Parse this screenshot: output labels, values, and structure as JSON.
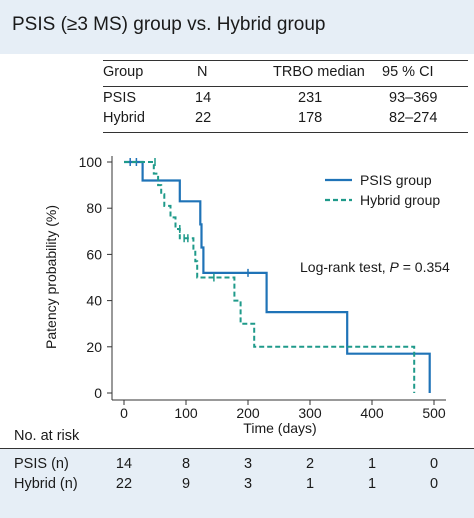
{
  "header": {
    "title": "PSIS (≥3 MS) group vs. Hybrid group"
  },
  "table": {
    "columns": [
      "Group",
      "N",
      "TRBO median",
      "95 % CI"
    ],
    "rows": [
      [
        "PSIS",
        "14",
        "231",
        "93–369"
      ],
      [
        "Hybrid",
        "22",
        "178",
        "82–274"
      ]
    ]
  },
  "chart_data": {
    "type": "line",
    "subtype": "kaplan-meier step",
    "xlabel": "Time (days)",
    "ylabel": "Patency probability (%)",
    "xlim": [
      0,
      500
    ],
    "ylim": [
      0,
      100
    ],
    "xticks": [
      0,
      100,
      200,
      300,
      400,
      500
    ],
    "yticks": [
      0,
      20,
      40,
      60,
      80,
      100
    ],
    "grid": false,
    "legend_position": "top-right",
    "annotation": {
      "prefix": "Log-rank test, ",
      "p": "P",
      "suffix": " = 0.354"
    },
    "series": [
      {
        "name": "PSIS group",
        "color": "#1f73b7",
        "style": "solid",
        "steps": [
          [
            0,
            100
          ],
          [
            30,
            100
          ],
          [
            30,
            92
          ],
          [
            90,
            92
          ],
          [
            90,
            83
          ],
          [
            123,
            83
          ],
          [
            123,
            73
          ],
          [
            125,
            73
          ],
          [
            125,
            63
          ],
          [
            128,
            63
          ],
          [
            128,
            52
          ],
          [
            230,
            52
          ],
          [
            230,
            35
          ],
          [
            360,
            35
          ],
          [
            360,
            17
          ],
          [
            493,
            17
          ],
          [
            493,
            0
          ]
        ],
        "censored": [
          [
            10,
            100
          ],
          [
            20,
            100
          ],
          [
            200,
            52
          ]
        ]
      },
      {
        "name": "Hybrid group",
        "color": "#1f9a8a",
        "style": "dashed",
        "steps": [
          [
            0,
            100
          ],
          [
            48,
            100
          ],
          [
            48,
            95
          ],
          [
            55,
            95
          ],
          [
            55,
            90
          ],
          [
            60,
            90
          ],
          [
            60,
            86
          ],
          [
            65,
            86
          ],
          [
            65,
            81
          ],
          [
            75,
            81
          ],
          [
            75,
            76
          ],
          [
            83,
            76
          ],
          [
            83,
            71
          ],
          [
            90,
            71
          ],
          [
            90,
            67
          ],
          [
            112,
            67
          ],
          [
            112,
            62
          ],
          [
            115,
            62
          ],
          [
            115,
            57
          ],
          [
            118,
            57
          ],
          [
            118,
            50
          ],
          [
            178,
            50
          ],
          [
            178,
            40
          ],
          [
            188,
            40
          ],
          [
            188,
            30
          ],
          [
            210,
            30
          ],
          [
            210,
            20
          ],
          [
            468,
            20
          ],
          [
            468,
            0
          ]
        ],
        "censored": [
          [
            50,
            100
          ],
          [
            90,
            71
          ],
          [
            97,
            67
          ],
          [
            103,
            67
          ],
          [
            145,
            50
          ]
        ]
      }
    ]
  },
  "risk": {
    "title": "No. at risk",
    "times": [
      "0",
      "100",
      "200",
      "300",
      "400",
      "500"
    ],
    "rows": [
      {
        "label": "PSIS (n)",
        "values": [
          "14",
          "8",
          "3",
          "2",
          "1",
          "0"
        ]
      },
      {
        "label": "Hybrid (n)",
        "values": [
          "22",
          "9",
          "3",
          "1",
          "1",
          "0"
        ]
      }
    ]
  }
}
